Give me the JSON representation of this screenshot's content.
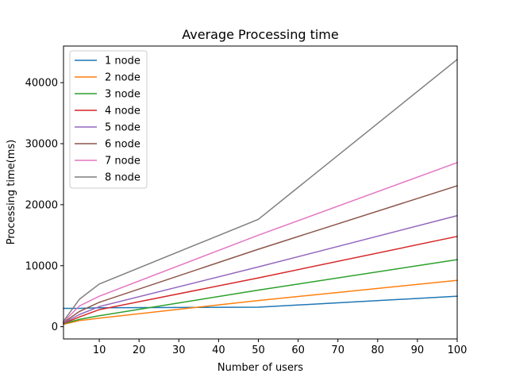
{
  "chart_data": {
    "type": "line",
    "title": "Average Processing time",
    "xlabel": "Number of users",
    "ylabel": "Processing time(ms)",
    "xlim": [
      1,
      100
    ],
    "ylim": [
      -2000,
      46000
    ],
    "xticks": [
      10,
      20,
      30,
      40,
      50,
      60,
      70,
      80,
      90,
      100
    ],
    "yticks": [
      0,
      10000,
      20000,
      30000,
      40000
    ],
    "grid": false,
    "legend_position": "top-left",
    "x": [
      1,
      5,
      10,
      50,
      100
    ],
    "series": [
      {
        "name": "1 node",
        "color": "#1f77b4",
        "values": [
          3000,
          3000,
          3100,
          3200,
          5000
        ]
      },
      {
        "name": "2 node",
        "color": "#ff7f0e",
        "values": [
          400,
          1000,
          1400,
          4300,
          7600
        ]
      },
      {
        "name": "3 node",
        "color": "#2ca02c",
        "values": [
          500,
          1200,
          1800,
          6000,
          11000
        ]
      },
      {
        "name": "4 node",
        "color": "#d62728",
        "values": [
          550,
          1600,
          2800,
          8000,
          14800
        ]
      },
      {
        "name": "5 node",
        "color": "#9467bd",
        "values": [
          600,
          2000,
          3300,
          9800,
          18200
        ]
      },
      {
        "name": "6 node",
        "color": "#8c564b",
        "values": [
          700,
          2500,
          4000,
          12700,
          23100
        ]
      },
      {
        "name": "7 node",
        "color": "#e377c2",
        "values": [
          800,
          3400,
          5000,
          15000,
          26900
        ]
      },
      {
        "name": "8 node",
        "color": "#7f7f7f",
        "values": [
          900,
          4500,
          7000,
          17600,
          43800
        ]
      }
    ]
  }
}
